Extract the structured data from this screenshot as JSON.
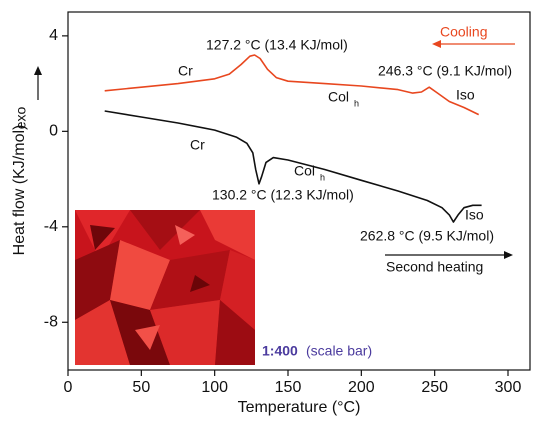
{
  "chart_data": {
    "type": "line",
    "x_label": "Temperature (°C)",
    "y_label": "Heat flow (KJ/mol)",
    "exo_label": "exo",
    "xlim": [
      0,
      315
    ],
    "ylim": [
      -10,
      5
    ],
    "xticks": [
      0,
      50,
      100,
      150,
      200,
      250,
      300
    ],
    "yticks": [
      4,
      0,
      -4,
      -8
    ],
    "series": [
      {
        "name": "Cooling",
        "color": "#e8471f",
        "x": [
          25,
          50,
          75,
          100,
          110,
          118,
          124,
          127.2,
          131,
          136,
          142,
          150,
          175,
          200,
          225,
          235,
          241,
          246.3,
          252,
          260,
          270,
          280
        ],
        "values": [
          1.7,
          1.85,
          2.0,
          2.2,
          2.4,
          2.8,
          3.15,
          3.2,
          3.05,
          2.6,
          2.25,
          2.1,
          2.0,
          1.9,
          1.75,
          1.6,
          1.65,
          1.85,
          1.6,
          1.25,
          1.0,
          0.7
        ]
      },
      {
        "name": "Second heating",
        "color": "#111111",
        "x": [
          25,
          50,
          75,
          100,
          115,
          122,
          126,
          128,
          130.2,
          132,
          135,
          140,
          150,
          175,
          200,
          225,
          245,
          255,
          260,
          262.8,
          266,
          270,
          276,
          282
        ],
        "values": [
          0.85,
          0.6,
          0.35,
          0.05,
          -0.25,
          -0.5,
          -0.9,
          -1.6,
          -2.2,
          -1.9,
          -1.3,
          -1.1,
          -1.2,
          -1.6,
          -2.05,
          -2.5,
          -2.9,
          -3.2,
          -3.5,
          -3.8,
          -3.5,
          -3.2,
          -3.1,
          -3.1
        ]
      }
    ],
    "annotations": {
      "peak_cool_1": "127.2 °C (13.4 KJ/mol)",
      "peak_cool_2": "246.3 °C (9.1 KJ/mol)",
      "peak_heat_1": "130.2 °C (12.3 KJ/mol)",
      "peak_heat_2": "262.8 °C (9.5 KJ/mol)",
      "cr": "Cr",
      "col": "Col",
      "col_sub": "h",
      "iso": "Iso",
      "scale_ratio": "1:400",
      "scale_note": "(scale bar)"
    }
  }
}
